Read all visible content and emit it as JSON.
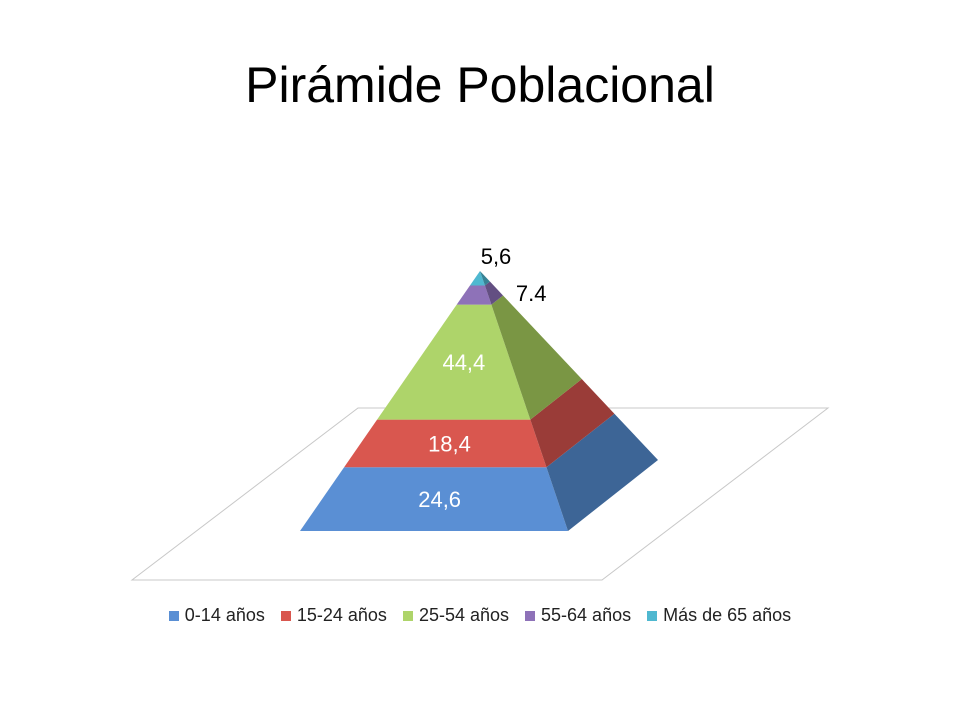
{
  "chart_data": {
    "type": "pyramid",
    "title": "Pirámide Poblacional",
    "series": [
      {
        "name": "0-14 años",
        "value": 24.6,
        "label": "24,6",
        "color": "#5a8fd4",
        "side": "#3d6596"
      },
      {
        "name": "15-24 años",
        "value": 18.4,
        "label": "18,4",
        "color": "#d9574f",
        "side": "#9a3c38"
      },
      {
        "name": "25-54 años",
        "value": 44.4,
        "label": "44,4",
        "color": "#aed46a",
        "side": "#7a9644"
      },
      {
        "name": "55-64 años",
        "value": 7.4,
        "label": "7.4",
        "color": "#8e72b8",
        "side": "#634f82"
      },
      {
        "name": "Más de 65 años",
        "value": 5.6,
        "label": "5,6",
        "color": "#4fb8d0",
        "side": "#378395"
      }
    ],
    "legend_position": "bottom"
  }
}
